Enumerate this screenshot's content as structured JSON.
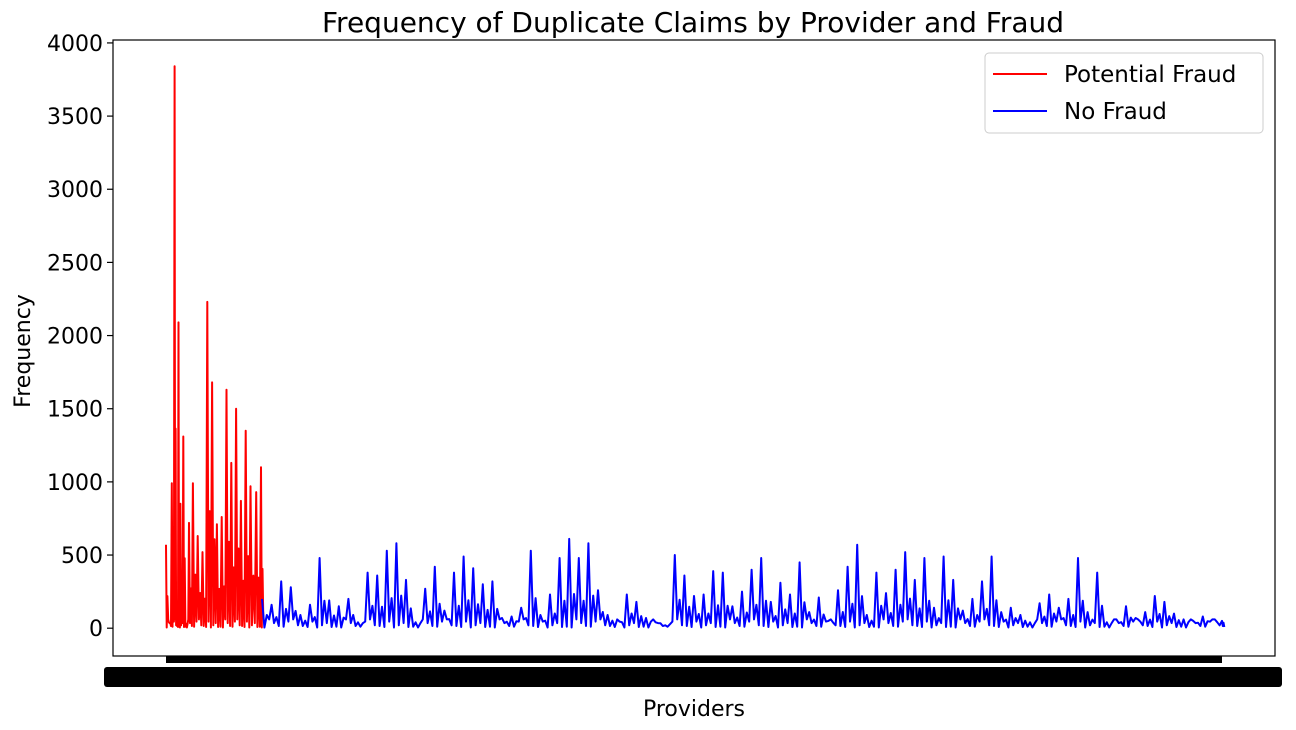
{
  "chart_data": {
    "type": "line",
    "title": "Frequency of Duplicate Claims by Provider and Fraud",
    "xlabel": "Providers",
    "ylabel": "Frequency",
    "ylim": [
      -190,
      4020
    ],
    "yticks": [
      0,
      500,
      1000,
      1500,
      2000,
      2500,
      3000,
      3500,
      4000
    ],
    "x_tick_labels_note": "",
    "legend": {
      "placement": "top-right"
    },
    "series": [
      {
        "name": "Potential Fraud",
        "color": "#ff0000",
        "x": [
          0,
          3,
          6,
          9,
          11,
          13,
          15,
          18,
          21,
          24,
          28,
          33,
          38,
          43,
          48,
          53,
          58,
          63,
          68,
          73,
          78,
          83,
          88,
          94,
          99
        ],
        "values": [
          570,
          40,
          990,
          3840,
          30,
          2090,
          850,
          1310,
          30,
          720,
          990,
          630,
          520,
          2230,
          1680,
          710,
          760,
          1630,
          1130,
          1500,
          870,
          1350,
          970,
          930,
          1100
        ]
      },
      {
        "name": "No Fraud",
        "color": "#0000ff",
        "x": [
          100,
          110,
          120,
          130,
          140,
          150,
          160,
          170,
          180,
          190,
          200,
          210,
          220,
          230,
          240,
          250,
          260,
          270,
          280,
          290,
          300,
          310,
          320,
          330,
          340,
          350,
          360,
          370,
          380,
          390,
          400,
          410,
          420,
          430,
          440,
          450,
          460,
          470,
          480,
          490,
          500,
          510,
          520,
          530,
          540,
          550,
          560,
          570,
          580,
          590,
          600,
          610,
          620,
          630,
          640,
          650,
          660,
          670,
          680,
          690,
          700,
          710,
          720,
          730,
          740,
          750,
          760,
          770,
          780,
          790,
          800,
          810,
          820,
          830,
          840,
          850,
          860,
          870,
          880,
          890,
          900,
          910,
          920,
          930,
          940,
          950,
          960,
          970,
          980,
          990,
          1000,
          1010,
          1020,
          1030,
          1040,
          1050,
          1060,
          1070,
          1080,
          1090,
          1100
        ],
        "values": [
          200,
          160,
          320,
          280,
          90,
          160,
          480,
          190,
          150,
          200,
          40,
          380,
          360,
          530,
          580,
          330,
          40,
          270,
          420,
          120,
          380,
          490,
          410,
          300,
          320,
          70,
          80,
          140,
          530,
          90,
          230,
          480,
          610,
          480,
          580,
          260,
          90,
          60,
          230,
          180,
          70,
          40,
          20,
          500,
          360,
          220,
          230,
          390,
          380,
          150,
          250,
          400,
          480,
          180,
          310,
          230,
          450,
          110,
          210,
          50,
          260,
          420,
          570,
          90,
          380,
          240,
          400,
          520,
          330,
          480,
          140,
          490,
          330,
          120,
          200,
          320,
          490,
          110,
          140,
          90,
          40,
          170,
          230,
          140,
          200,
          480,
          110,
          380,
          40,
          60,
          150,
          70,
          110,
          220,
          180,
          100,
          60,
          50,
          80,
          60,
          50
        ]
      }
    ]
  }
}
